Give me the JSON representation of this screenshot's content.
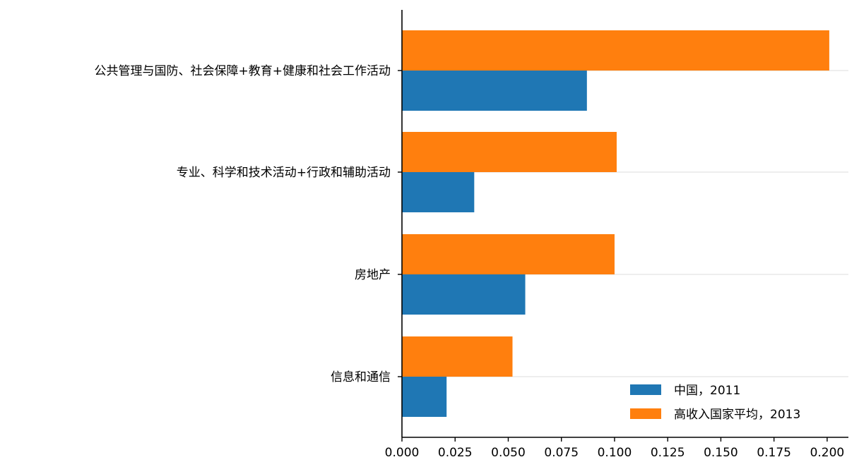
{
  "chart_data": {
    "type": "bar",
    "orientation": "horizontal",
    "categories": [
      "公共管理与国防、社会保障+教育+健康和社会工作活动",
      "专业、科学和技术活动+行政和辅助活动",
      "房地产",
      "信息和通信"
    ],
    "series": [
      {
        "name": "中国，2011",
        "color": "#1f77b4",
        "values": [
          0.087,
          0.034,
          0.058,
          0.021
        ]
      },
      {
        "name": "高收入国家平均，2013",
        "color": "#ff7f0e",
        "values": [
          0.201,
          0.101,
          0.1,
          0.052
        ]
      }
    ],
    "xlim": [
      0,
      0.21
    ],
    "xticks": [
      "0.000",
      "0.025",
      "0.050",
      "0.075",
      "0.100",
      "0.125",
      "0.150",
      "0.175",
      "0.200"
    ],
    "grid": "horizontal lines at category ticks",
    "legend_position": "lower-right",
    "title": "",
    "xlabel": "",
    "ylabel": ""
  }
}
